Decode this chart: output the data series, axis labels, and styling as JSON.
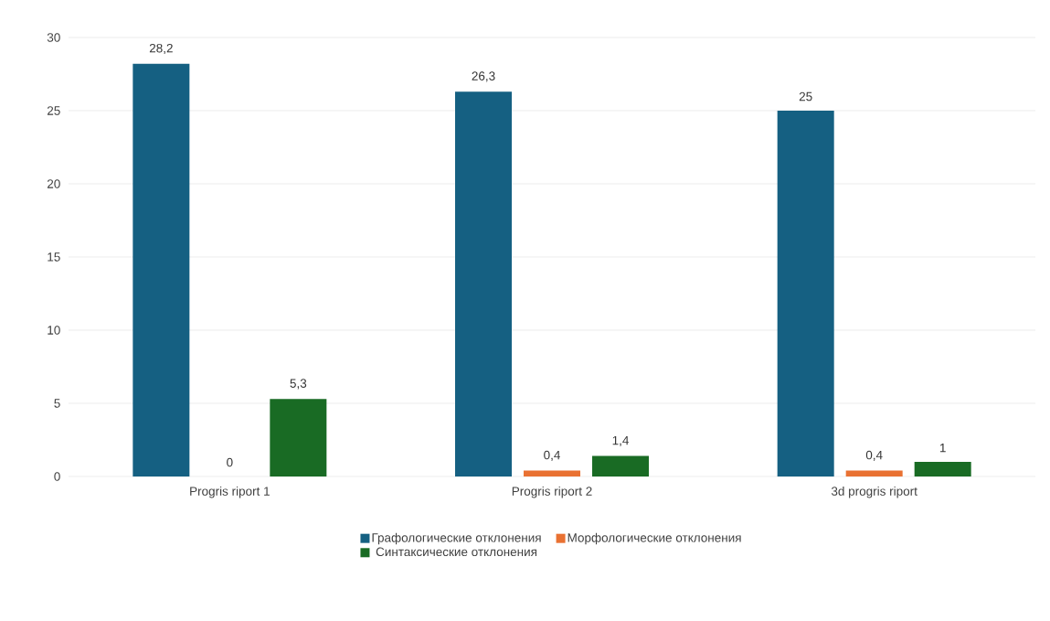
{
  "chart_data": {
    "type": "bar",
    "categories": [
      "Progris riport 1",
      "Progris riport 2",
      "3d progris riport"
    ],
    "series": [
      {
        "name": "Графологические отклонения",
        "color": "#156082",
        "values": [
          28.2,
          26.3,
          25
        ],
        "value_labels": [
          "28,2",
          "26,3",
          "25"
        ]
      },
      {
        "name": "Морфологические отклонения",
        "color": "#e97132",
        "values": [
          0,
          0.4,
          0.4
        ],
        "value_labels": [
          "0",
          "0,4",
          "0,4"
        ]
      },
      {
        "name": "Синтаксические отклонения",
        "color": "#196b24",
        "values": [
          5.3,
          1.4,
          1
        ],
        "value_labels": [
          "5,3",
          "1,4",
          "1"
        ]
      }
    ],
    "ylim": [
      0,
      30
    ],
    "yticks": [
      0,
      5,
      10,
      15,
      20,
      25,
      30
    ],
    "grid": "y",
    "legend": "bottom"
  }
}
